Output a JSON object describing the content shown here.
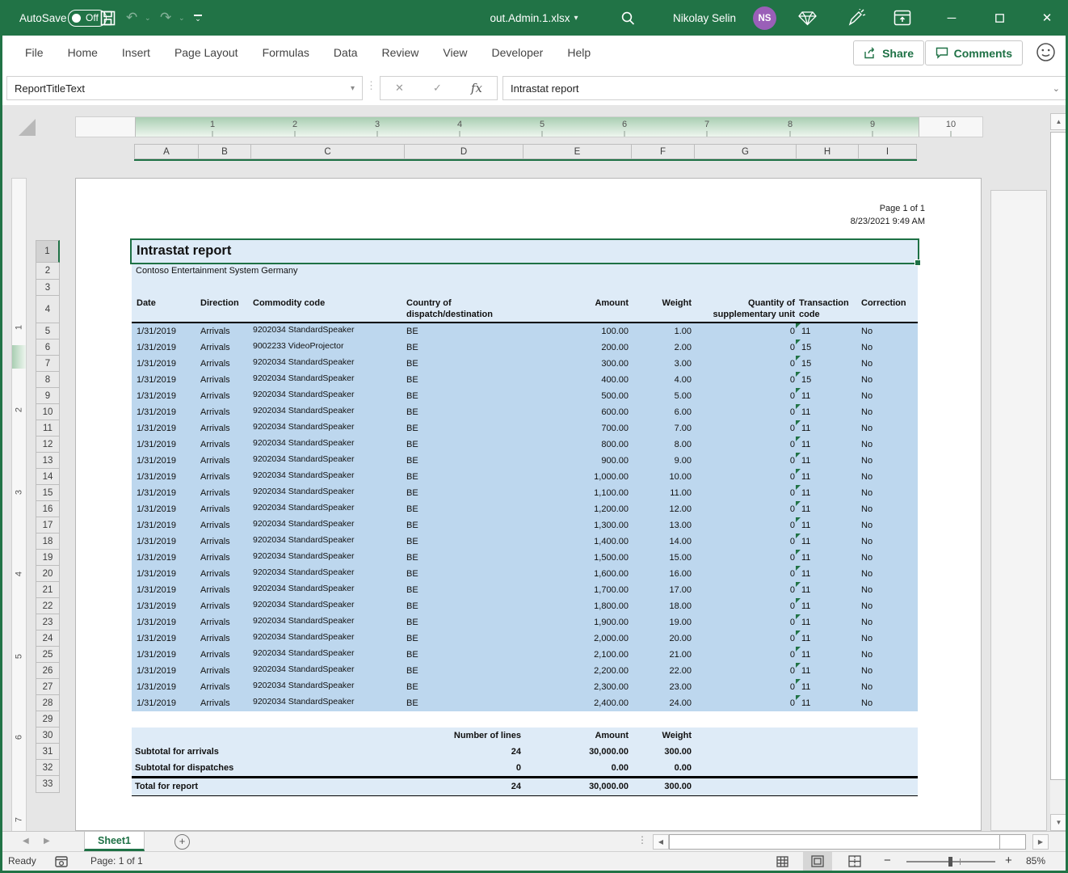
{
  "colors": {
    "brand": "#217346",
    "selection": "#1e7145",
    "data_fill": "#bdd7ee",
    "light_fill": "#deebf7",
    "avatar": "#9a5fb8"
  },
  "icons": {
    "undo": "↶",
    "redo": "↷",
    "caret_down": "⌄",
    "dropdown_arrow": "▾",
    "minimize": "─",
    "maximize": "☐",
    "close": "✕",
    "prev": "◀",
    "next": "▶",
    "up": "▲",
    "down": "▼",
    "left": "◀",
    "right": "▶",
    "plus": "+",
    "minus": "−",
    "cancel": "✕",
    "enter": "✓",
    "fx": "fx",
    "ellipsis": "⋮",
    "vdots": "⋮",
    "add_sheet": "+"
  },
  "titlebar": {
    "autosave_label": "AutoSave",
    "autosave_state": "Off",
    "filename": "out.Admin.1.xlsx",
    "user_name": "Nikolay Selin",
    "user_initials": "NS"
  },
  "ribbon": {
    "tabs": [
      "File",
      "Home",
      "Insert",
      "Page Layout",
      "Formulas",
      "Data",
      "Review",
      "View",
      "Developer",
      "Help"
    ],
    "share_label": "Share",
    "comments_label": "Comments"
  },
  "formula_bar": {
    "name_box": "ReportTitleText",
    "formula": "Intrastat report"
  },
  "ruler": {
    "horizontal": [
      "1",
      "2",
      "3",
      "4",
      "5",
      "6",
      "7",
      "8",
      "9",
      "10"
    ],
    "vertical": [
      "1",
      "2",
      "3",
      "4",
      "5",
      "6",
      "7"
    ]
  },
  "grid": {
    "columns": [
      "A",
      "B",
      "C",
      "D",
      "E",
      "F",
      "G",
      "H",
      "I"
    ],
    "rows": [
      "1",
      "2",
      "3",
      "4",
      "5",
      "6",
      "7",
      "8",
      "9",
      "10",
      "11",
      "12",
      "13",
      "14",
      "15",
      "16",
      "17",
      "18",
      "19",
      "20",
      "21",
      "22",
      "23",
      "24",
      "25",
      "26",
      "27",
      "28",
      "29",
      "30",
      "31",
      "32",
      "33"
    ]
  },
  "page_header": {
    "page_label": "Page 1 of  1",
    "datetime": "8/23/2021 9:49 AM"
  },
  "report": {
    "title": "Intrastat report",
    "company": "Contoso Entertainment System Germany",
    "columns": {
      "date": "Date",
      "direction": "Direction",
      "commodity": "Commodity code",
      "country1": "Country of",
      "country2": "dispatch/destination",
      "amount": "Amount",
      "weight": "Weight",
      "qty1": "Quantity of",
      "qty2": "supplementary unit",
      "code1": "Transaction",
      "code2": "code",
      "correction": "Correction"
    },
    "rows": [
      {
        "date": "1/31/2019",
        "direction": "Arrivals",
        "commodity": "9202034 StandardSpeaker",
        "country": "BE",
        "amount": "100.00",
        "weight": "1.00",
        "qty": "0",
        "code": "11",
        "correction": "No"
      },
      {
        "date": "1/31/2019",
        "direction": "Arrivals",
        "commodity": "9002233 VideoProjector",
        "country": "BE",
        "amount": "200.00",
        "weight": "2.00",
        "qty": "0",
        "code": "15",
        "correction": "No"
      },
      {
        "date": "1/31/2019",
        "direction": "Arrivals",
        "commodity": "9202034 StandardSpeaker",
        "country": "BE",
        "amount": "300.00",
        "weight": "3.00",
        "qty": "0",
        "code": "15",
        "correction": "No"
      },
      {
        "date": "1/31/2019",
        "direction": "Arrivals",
        "commodity": "9202034 StandardSpeaker",
        "country": "BE",
        "amount": "400.00",
        "weight": "4.00",
        "qty": "0",
        "code": "15",
        "correction": "No"
      },
      {
        "date": "1/31/2019",
        "direction": "Arrivals",
        "commodity": "9202034 StandardSpeaker",
        "country": "BE",
        "amount": "500.00",
        "weight": "5.00",
        "qty": "0",
        "code": "11",
        "correction": "No"
      },
      {
        "date": "1/31/2019",
        "direction": "Arrivals",
        "commodity": "9202034 StandardSpeaker",
        "country": "BE",
        "amount": "600.00",
        "weight": "6.00",
        "qty": "0",
        "code": "11",
        "correction": "No"
      },
      {
        "date": "1/31/2019",
        "direction": "Arrivals",
        "commodity": "9202034 StandardSpeaker",
        "country": "BE",
        "amount": "700.00",
        "weight": "7.00",
        "qty": "0",
        "code": "11",
        "correction": "No"
      },
      {
        "date": "1/31/2019",
        "direction": "Arrivals",
        "commodity": "9202034 StandardSpeaker",
        "country": "BE",
        "amount": "800.00",
        "weight": "8.00",
        "qty": "0",
        "code": "11",
        "correction": "No"
      },
      {
        "date": "1/31/2019",
        "direction": "Arrivals",
        "commodity": "9202034 StandardSpeaker",
        "country": "BE",
        "amount": "900.00",
        "weight": "9.00",
        "qty": "0",
        "code": "11",
        "correction": "No"
      },
      {
        "date": "1/31/2019",
        "direction": "Arrivals",
        "commodity": "9202034 StandardSpeaker",
        "country": "BE",
        "amount": "1,000.00",
        "weight": "10.00",
        "qty": "0",
        "code": "11",
        "correction": "No"
      },
      {
        "date": "1/31/2019",
        "direction": "Arrivals",
        "commodity": "9202034 StandardSpeaker",
        "country": "BE",
        "amount": "1,100.00",
        "weight": "11.00",
        "qty": "0",
        "code": "11",
        "correction": "No"
      },
      {
        "date": "1/31/2019",
        "direction": "Arrivals",
        "commodity": "9202034 StandardSpeaker",
        "country": "BE",
        "amount": "1,200.00",
        "weight": "12.00",
        "qty": "0",
        "code": "11",
        "correction": "No"
      },
      {
        "date": "1/31/2019",
        "direction": "Arrivals",
        "commodity": "9202034 StandardSpeaker",
        "country": "BE",
        "amount": "1,300.00",
        "weight": "13.00",
        "qty": "0",
        "code": "11",
        "correction": "No"
      },
      {
        "date": "1/31/2019",
        "direction": "Arrivals",
        "commodity": "9202034 StandardSpeaker",
        "country": "BE",
        "amount": "1,400.00",
        "weight": "14.00",
        "qty": "0",
        "code": "11",
        "correction": "No"
      },
      {
        "date": "1/31/2019",
        "direction": "Arrivals",
        "commodity": "9202034 StandardSpeaker",
        "country": "BE",
        "amount": "1,500.00",
        "weight": "15.00",
        "qty": "0",
        "code": "11",
        "correction": "No"
      },
      {
        "date": "1/31/2019",
        "direction": "Arrivals",
        "commodity": "9202034 StandardSpeaker",
        "country": "BE",
        "amount": "1,600.00",
        "weight": "16.00",
        "qty": "0",
        "code": "11",
        "correction": "No"
      },
      {
        "date": "1/31/2019",
        "direction": "Arrivals",
        "commodity": "9202034 StandardSpeaker",
        "country": "BE",
        "amount": "1,700.00",
        "weight": "17.00",
        "qty": "0",
        "code": "11",
        "correction": "No"
      },
      {
        "date": "1/31/2019",
        "direction": "Arrivals",
        "commodity": "9202034 StandardSpeaker",
        "country": "BE",
        "amount": "1,800.00",
        "weight": "18.00",
        "qty": "0",
        "code": "11",
        "correction": "No"
      },
      {
        "date": "1/31/2019",
        "direction": "Arrivals",
        "commodity": "9202034 StandardSpeaker",
        "country": "BE",
        "amount": "1,900.00",
        "weight": "19.00",
        "qty": "0",
        "code": "11",
        "correction": "No"
      },
      {
        "date": "1/31/2019",
        "direction": "Arrivals",
        "commodity": "9202034 StandardSpeaker",
        "country": "BE",
        "amount": "2,000.00",
        "weight": "20.00",
        "qty": "0",
        "code": "11",
        "correction": "No"
      },
      {
        "date": "1/31/2019",
        "direction": "Arrivals",
        "commodity": "9202034 StandardSpeaker",
        "country": "BE",
        "amount": "2,100.00",
        "weight": "21.00",
        "qty": "0",
        "code": "11",
        "correction": "No"
      },
      {
        "date": "1/31/2019",
        "direction": "Arrivals",
        "commodity": "9202034 StandardSpeaker",
        "country": "BE",
        "amount": "2,200.00",
        "weight": "22.00",
        "qty": "0",
        "code": "11",
        "correction": "No"
      },
      {
        "date": "1/31/2019",
        "direction": "Arrivals",
        "commodity": "9202034 StandardSpeaker",
        "country": "BE",
        "amount": "2,300.00",
        "weight": "23.00",
        "qty": "0",
        "code": "11",
        "correction": "No"
      },
      {
        "date": "1/31/2019",
        "direction": "Arrivals",
        "commodity": "9202034 StandardSpeaker",
        "country": "BE",
        "amount": "2,400.00",
        "weight": "24.00",
        "qty": "0",
        "code": "11",
        "correction": "No"
      }
    ],
    "summary": {
      "headers": {
        "lines": "Number of lines",
        "amount": "Amount",
        "weight": "Weight"
      },
      "rows": [
        {
          "label": "Subtotal for arrivals",
          "lines": "24",
          "amount": "30,000.00",
          "weight": "300.00"
        },
        {
          "label": "Subtotal for dispatches",
          "lines": "0",
          "amount": "0.00",
          "weight": "0.00"
        },
        {
          "label": "Total for report",
          "lines": "24",
          "amount": "30,000.00",
          "weight": "300.00"
        }
      ]
    }
  },
  "sheet_bar": {
    "active_tab": "Sheet1"
  },
  "status_bar": {
    "ready": "Ready",
    "page_info": "Page: 1 of 1",
    "zoom": "85%"
  }
}
